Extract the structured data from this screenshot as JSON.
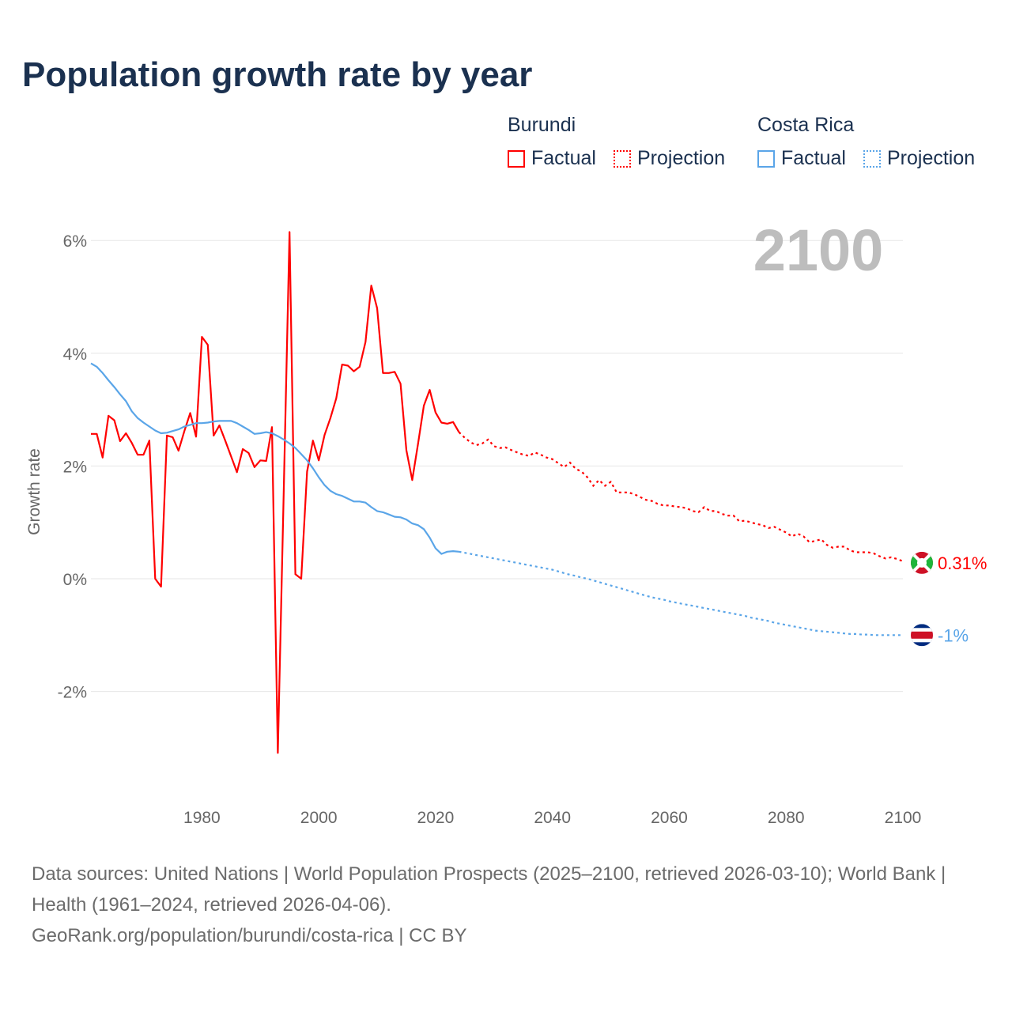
{
  "chart_data": {
    "type": "line",
    "title": "Population growth rate by year",
    "ylabel": "Growth rate",
    "xlabel": "",
    "xlim": [
      1961,
      2100
    ],
    "ylim": [
      -3.9,
      6.3
    ],
    "x_ticks": [
      1980,
      2000,
      2020,
      2040,
      2060,
      2080,
      2100
    ],
    "x_tick_labels": [
      "1980",
      "2000",
      "2020",
      "2040",
      "2060",
      "2080",
      "2100"
    ],
    "y_ticks": [
      6,
      4,
      2,
      0,
      -2
    ],
    "y_tick_labels": [
      "6%",
      "4%",
      "2%",
      "0%",
      "-2%"
    ],
    "grid": true,
    "legend_placement": "top-right",
    "year_label": "2100",
    "series": [
      {
        "name": "Burundi",
        "color": "#ff0000",
        "factual_label": "Factual",
        "projection_label": "Projection",
        "end_label": "0.31%",
        "flag": "burundi-flag",
        "factual_start": 1961,
        "factual": [
          2.57,
          2.57,
          2.15,
          2.89,
          2.81,
          2.44,
          2.58,
          2.41,
          2.2,
          2.2,
          2.45,
          0.0,
          -0.14,
          2.54,
          2.51,
          2.27,
          2.62,
          2.94,
          2.52,
          4.29,
          4.15,
          2.54,
          2.72,
          2.45,
          2.17,
          1.89,
          2.3,
          2.23,
          1.98,
          2.1,
          2.09,
          2.69,
          -3.09,
          1.5,
          6.15,
          0.08,
          0.0,
          1.9,
          2.45,
          2.1,
          2.55,
          2.85,
          3.2,
          3.8,
          3.78,
          3.68,
          3.76,
          4.2,
          5.2,
          4.8,
          3.65,
          3.65,
          3.67,
          3.46,
          2.28,
          1.75,
          2.4,
          3.07,
          3.35,
          2.95,
          2.77,
          2.75,
          2.78,
          2.6
        ],
        "projection_start": 2024,
        "projection": [
          2.6,
          2.5,
          2.42,
          2.37,
          2.4,
          2.47,
          2.35,
          2.32,
          2.33,
          2.28,
          2.24,
          2.2,
          2.18,
          2.24,
          2.2,
          2.15,
          2.12,
          2.05,
          1.98,
          2.06,
          1.95,
          1.9,
          1.8,
          1.65,
          1.75,
          1.65,
          1.72,
          1.53,
          1.53,
          1.53,
          1.5,
          1.45,
          1.4,
          1.38,
          1.33,
          1.3,
          1.3,
          1.28,
          1.27,
          1.25,
          1.2,
          1.18,
          1.27,
          1.2,
          1.2,
          1.15,
          1.12,
          1.12,
          1.02,
          1.03,
          1.0,
          0.97,
          0.95,
          0.9,
          0.92,
          0.87,
          0.82,
          0.75,
          0.8,
          0.75,
          0.65,
          0.67,
          0.7,
          0.6,
          0.55,
          0.57,
          0.57,
          0.5,
          0.47,
          0.47,
          0.47,
          0.45,
          0.4,
          0.36,
          0.38,
          0.35,
          0.31
        ]
      },
      {
        "name": "Costa Rica",
        "color": "#5aa5e8",
        "factual_label": "Factual",
        "projection_label": "Projection",
        "end_label": "-1%",
        "flag": "costa-rica-flag",
        "factual_start": 1961,
        "factual": [
          3.82,
          3.76,
          3.65,
          3.52,
          3.4,
          3.27,
          3.15,
          2.97,
          2.85,
          2.77,
          2.7,
          2.63,
          2.58,
          2.59,
          2.62,
          2.65,
          2.7,
          2.73,
          2.76,
          2.76,
          2.77,
          2.79,
          2.8,
          2.8,
          2.8,
          2.76,
          2.7,
          2.64,
          2.57,
          2.58,
          2.6,
          2.58,
          2.53,
          2.47,
          2.4,
          2.32,
          2.21,
          2.1,
          1.96,
          1.8,
          1.66,
          1.56,
          1.5,
          1.47,
          1.42,
          1.37,
          1.37,
          1.35,
          1.27,
          1.2,
          1.18,
          1.14,
          1.1,
          1.09,
          1.05,
          0.98,
          0.95,
          0.88,
          0.73,
          0.54,
          0.44,
          0.48,
          0.49,
          0.48
        ],
        "projection_start": 2024,
        "projection": [
          0.48,
          0.46,
          0.44,
          0.42,
          0.4,
          0.38,
          0.36,
          0.34,
          0.32,
          0.3,
          0.28,
          0.26,
          0.24,
          0.22,
          0.2,
          0.18,
          0.16,
          0.13,
          0.1,
          0.07,
          0.05,
          0.02,
          0.0,
          -0.03,
          -0.06,
          -0.09,
          -0.12,
          -0.15,
          -0.18,
          -0.21,
          -0.24,
          -0.27,
          -0.3,
          -0.33,
          -0.35,
          -0.37,
          -0.4,
          -0.42,
          -0.44,
          -0.46,
          -0.48,
          -0.5,
          -0.52,
          -0.54,
          -0.56,
          -0.58,
          -0.6,
          -0.62,
          -0.64,
          -0.66,
          -0.69,
          -0.71,
          -0.73,
          -0.75,
          -0.78,
          -0.8,
          -0.82,
          -0.84,
          -0.86,
          -0.88,
          -0.9,
          -0.92,
          -0.93,
          -0.94,
          -0.95,
          -0.96,
          -0.97,
          -0.98,
          -0.98,
          -0.99,
          -0.99,
          -1.0,
          -1.0,
          -1.0,
          -1.0,
          -1.0,
          -1.0
        ]
      }
    ]
  },
  "footer": {
    "sources": "Data sources: United Nations | World Population Prospects (2025–2100, retrieved 2026-03-10); World Bank | Health (1961–2024, retrieved 2026-04-06).",
    "credit": "GeoRank.org/population/burundi/costa-rica | CC BY"
  }
}
